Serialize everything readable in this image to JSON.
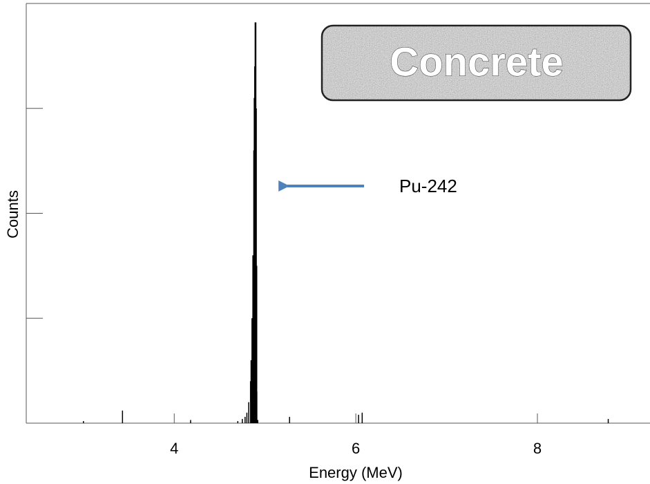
{
  "chart_data": {
    "type": "stem",
    "x_label": "Energy (MeV)",
    "y_label": "Counts",
    "x": [
      3.0,
      3.43,
      4.18,
      4.7,
      4.75,
      4.78,
      4.8,
      4.82,
      4.84,
      4.85,
      4.86,
      4.87,
      4.88,
      4.885,
      4.89,
      4.895,
      4.9,
      4.905,
      4.91,
      4.92,
      5.27,
      6.03,
      6.07,
      8.78
    ],
    "values": [
      0.02,
      0.12,
      0.03,
      0.02,
      0.04,
      0.06,
      0.1,
      0.2,
      0.4,
      0.6,
      1.0,
      1.6,
      2.6,
      3.1,
      3.4,
      3.82,
      3.0,
      1.5,
      0.3,
      0.03,
      0.06,
      0.08,
      0.1,
      0.04
    ],
    "color": "#000000",
    "xlim": [
      2.37,
      9.24
    ],
    "xticks": [
      4,
      6,
      8
    ],
    "ylim": [
      0,
      4
    ],
    "yticks": [
      1,
      2,
      3
    ],
    "annotations": [
      {
        "text": "Pu-242",
        "x": 4.9,
        "y": 2.3
      },
      {
        "text": "Concrete"
      }
    ]
  }
}
